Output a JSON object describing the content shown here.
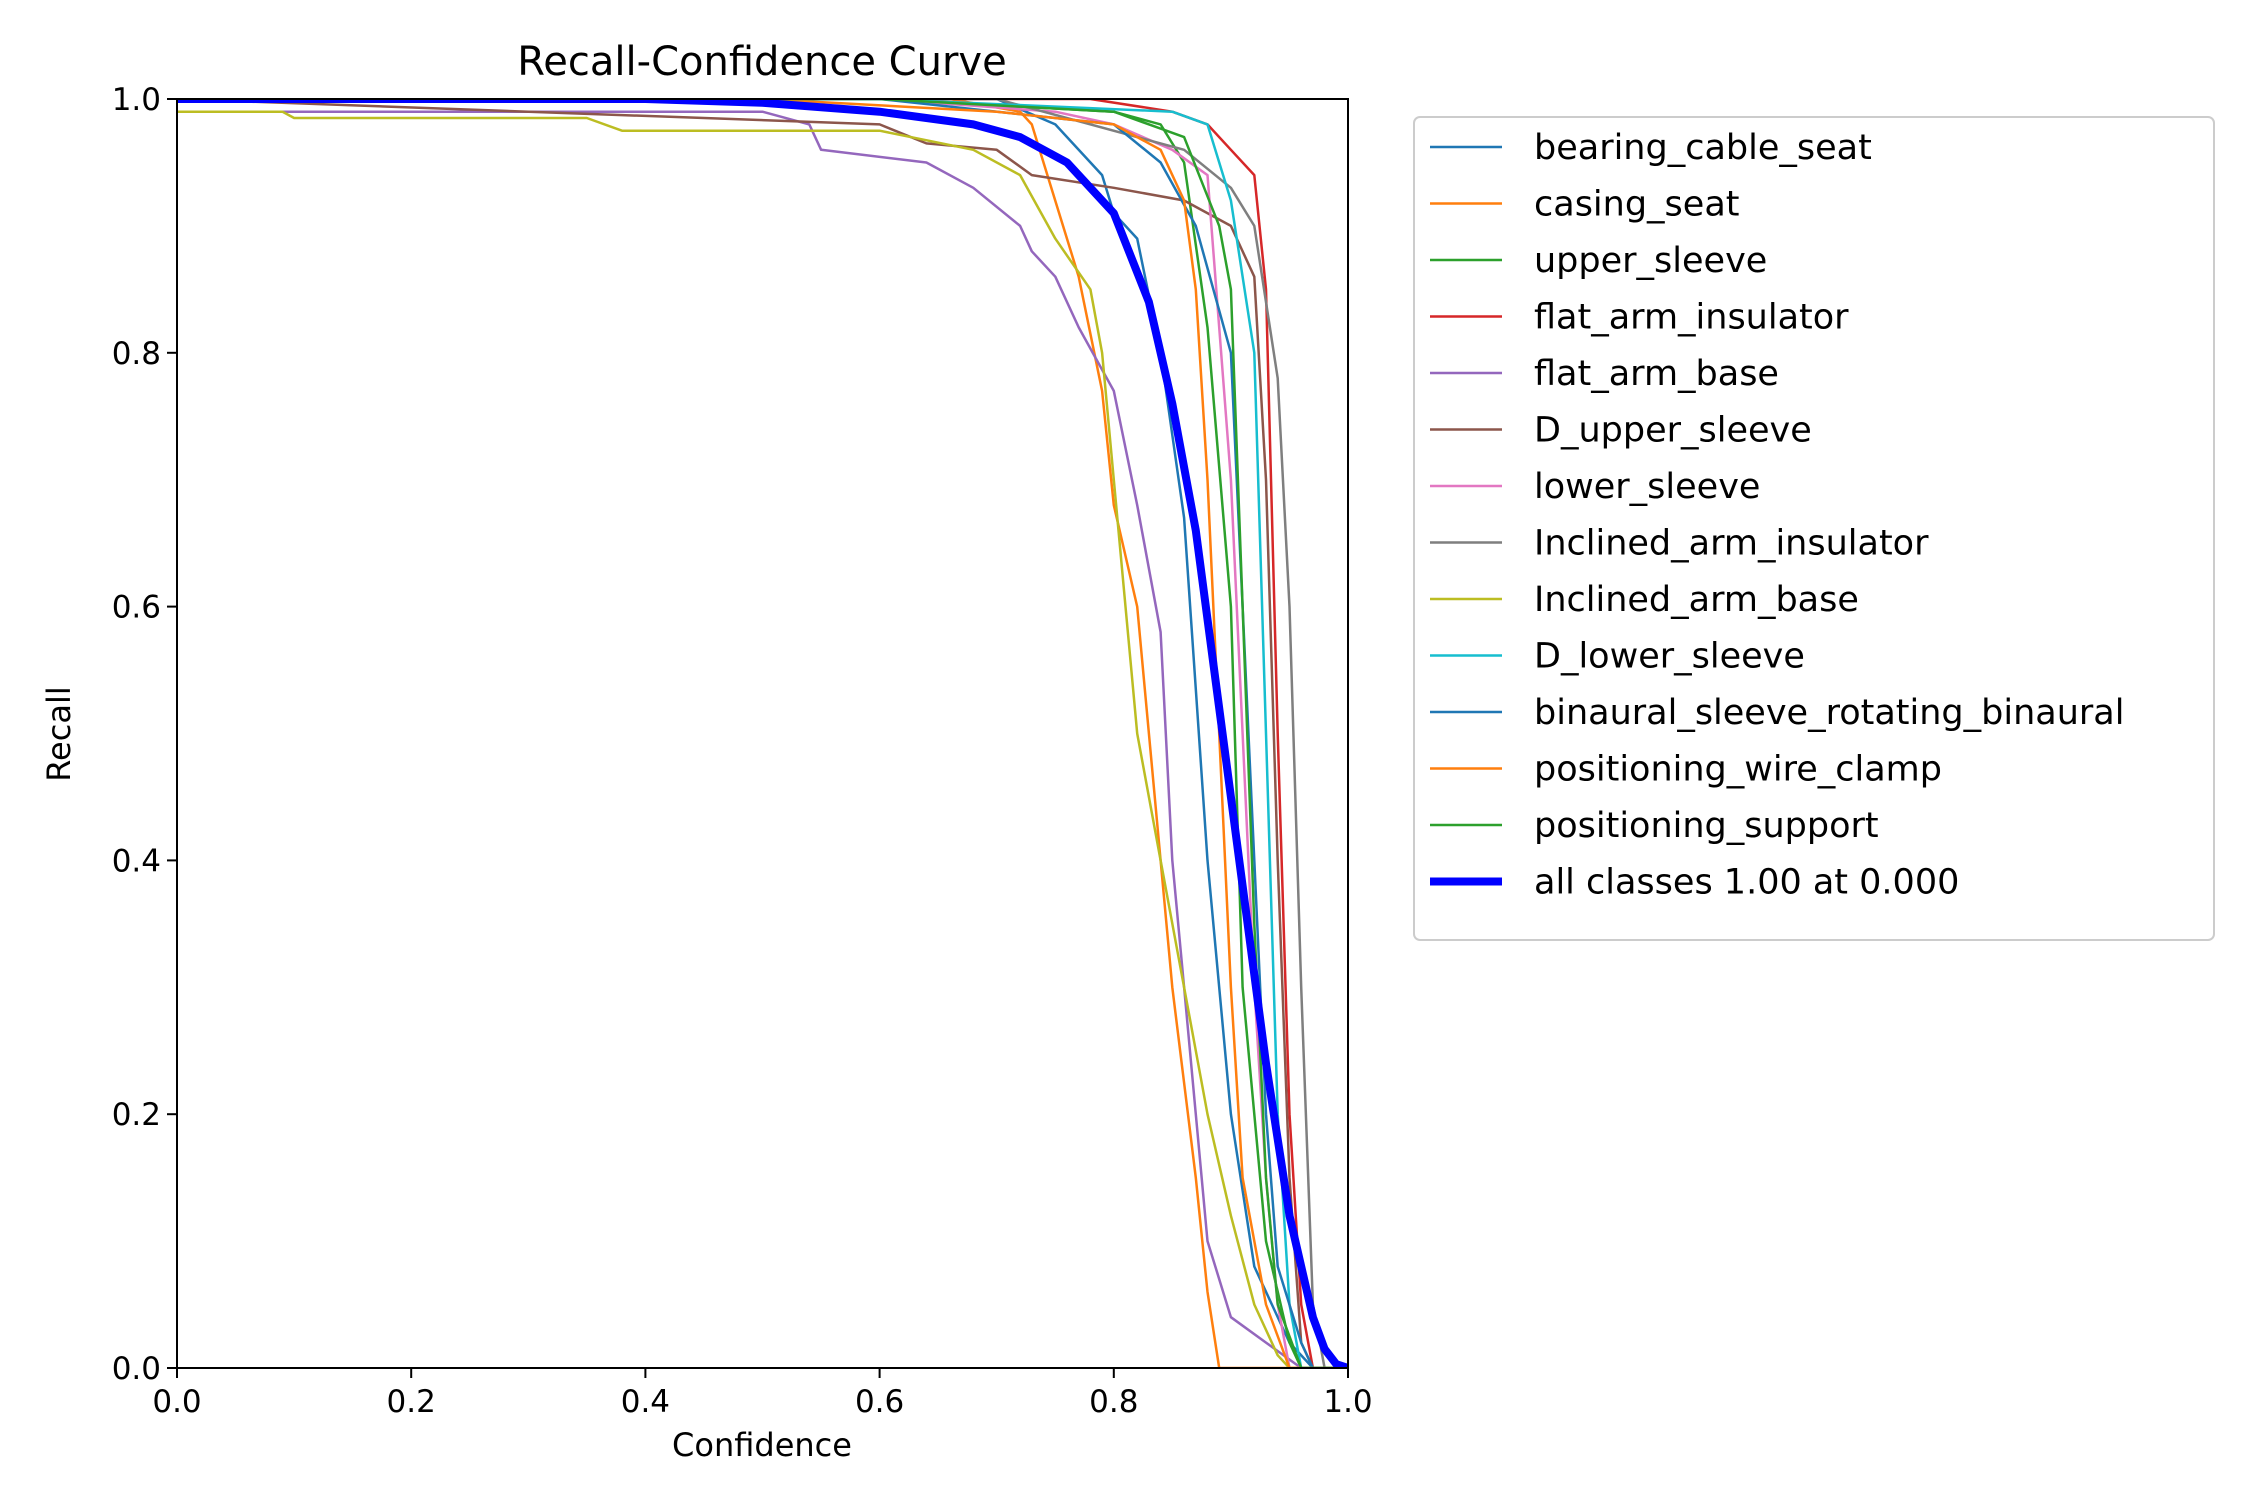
{
  "chart_data": {
    "type": "line",
    "title": "Recall-Confidence Curve",
    "xlabel": "Confidence",
    "ylabel": "Recall",
    "xlim": [
      0.0,
      1.0
    ],
    "ylim": [
      0.0,
      1.0
    ],
    "xticks": [
      "0.0",
      "0.2",
      "0.4",
      "0.6",
      "0.8",
      "1.0"
    ],
    "yticks": [
      "0.0",
      "0.2",
      "0.4",
      "0.6",
      "0.8",
      "1.0"
    ],
    "legend_position": "outside-right-top",
    "grid": false,
    "series": [
      {
        "name": "bearing_cable_seat",
        "color": "#1f77b4",
        "width": 2.5,
        "points": [
          [
            0,
            1.0
          ],
          [
            0.7,
            1.0
          ],
          [
            0.75,
            0.98
          ],
          [
            0.79,
            0.94
          ],
          [
            0.8,
            0.91
          ],
          [
            0.82,
            0.89
          ],
          [
            0.84,
            0.8
          ],
          [
            0.86,
            0.67
          ],
          [
            0.88,
            0.4
          ],
          [
            0.9,
            0.2
          ],
          [
            0.92,
            0.08
          ],
          [
            0.95,
            0.02
          ],
          [
            0.97,
            0.0
          ],
          [
            1.0,
            0.0
          ]
        ]
      },
      {
        "name": "casing_seat",
        "color": "#ff7f0e",
        "width": 2.5,
        "points": [
          [
            0,
            1.0
          ],
          [
            0.5,
            1.0
          ],
          [
            0.66,
            1.0
          ],
          [
            0.72,
            0.99
          ],
          [
            0.73,
            0.98
          ],
          [
            0.74,
            0.95
          ],
          [
            0.77,
            0.86
          ],
          [
            0.79,
            0.77
          ],
          [
            0.8,
            0.68
          ],
          [
            0.82,
            0.6
          ],
          [
            0.84,
            0.4
          ],
          [
            0.85,
            0.3
          ],
          [
            0.87,
            0.15
          ],
          [
            0.88,
            0.06
          ],
          [
            0.89,
            0.0
          ],
          [
            1.0,
            0.0
          ]
        ]
      },
      {
        "name": "upper_sleeve",
        "color": "#2ca02c",
        "width": 2.5,
        "points": [
          [
            0,
            1.0
          ],
          [
            0.6,
            1.0
          ],
          [
            0.8,
            0.99
          ],
          [
            0.84,
            0.98
          ],
          [
            0.86,
            0.95
          ],
          [
            0.88,
            0.82
          ],
          [
            0.9,
            0.6
          ],
          [
            0.91,
            0.3
          ],
          [
            0.93,
            0.1
          ],
          [
            0.95,
            0.02
          ],
          [
            0.96,
            0.0
          ],
          [
            1.0,
            0.0
          ]
        ]
      },
      {
        "name": "flat_arm_insulator",
        "color": "#d62728",
        "width": 2.5,
        "points": [
          [
            0,
            1.0
          ],
          [
            0.78,
            1.0
          ],
          [
            0.85,
            0.99
          ],
          [
            0.88,
            0.98
          ],
          [
            0.9,
            0.96
          ],
          [
            0.92,
            0.94
          ],
          [
            0.93,
            0.85
          ],
          [
            0.94,
            0.5
          ],
          [
            0.95,
            0.2
          ],
          [
            0.96,
            0.05
          ],
          [
            0.97,
            0.0
          ],
          [
            1.0,
            0.0
          ]
        ]
      },
      {
        "name": "flat_arm_base",
        "color": "#9467bd",
        "width": 2.5,
        "points": [
          [
            0,
            0.99
          ],
          [
            0.5,
            0.99
          ],
          [
            0.54,
            0.98
          ],
          [
            0.55,
            0.96
          ],
          [
            0.64,
            0.95
          ],
          [
            0.68,
            0.93
          ],
          [
            0.72,
            0.9
          ],
          [
            0.73,
            0.88
          ],
          [
            0.75,
            0.86
          ],
          [
            0.77,
            0.82
          ],
          [
            0.8,
            0.77
          ],
          [
            0.82,
            0.68
          ],
          [
            0.84,
            0.58
          ],
          [
            0.85,
            0.4
          ],
          [
            0.86,
            0.3
          ],
          [
            0.87,
            0.2
          ],
          [
            0.88,
            0.1
          ],
          [
            0.9,
            0.04
          ],
          [
            0.93,
            0.02
          ],
          [
            0.96,
            0.0
          ],
          [
            1.0,
            0.0
          ]
        ]
      },
      {
        "name": "D_upper_sleeve",
        "color": "#8c564b",
        "width": 2.5,
        "points": [
          [
            0,
            1.0
          ],
          [
            0.6,
            0.98
          ],
          [
            0.64,
            0.965
          ],
          [
            0.7,
            0.96
          ],
          [
            0.73,
            0.94
          ],
          [
            0.8,
            0.93
          ],
          [
            0.86,
            0.92
          ],
          [
            0.9,
            0.9
          ],
          [
            0.92,
            0.86
          ],
          [
            0.93,
            0.7
          ],
          [
            0.94,
            0.4
          ],
          [
            0.95,
            0.15
          ],
          [
            0.96,
            0.02
          ],
          [
            0.97,
            0.0
          ],
          [
            1.0,
            0.0
          ]
        ]
      },
      {
        "name": "lower_sleeve",
        "color": "#e377c2",
        "width": 2.5,
        "points": [
          [
            0,
            1.0
          ],
          [
            0.6,
            1.0
          ],
          [
            0.75,
            0.99
          ],
          [
            0.8,
            0.98
          ],
          [
            0.85,
            0.96
          ],
          [
            0.88,
            0.94
          ],
          [
            0.9,
            0.7
          ],
          [
            0.91,
            0.5
          ],
          [
            0.92,
            0.3
          ],
          [
            0.93,
            0.15
          ],
          [
            0.94,
            0.05
          ],
          [
            0.95,
            0.0
          ],
          [
            1.0,
            0.0
          ]
        ]
      },
      {
        "name": "Inclined_arm_insulator",
        "color": "#7f7f7f",
        "width": 2.5,
        "points": [
          [
            0,
            1.0
          ],
          [
            0.7,
            1.0
          ],
          [
            0.86,
            0.96
          ],
          [
            0.9,
            0.93
          ],
          [
            0.92,
            0.9
          ],
          [
            0.94,
            0.78
          ],
          [
            0.95,
            0.6
          ],
          [
            0.96,
            0.3
          ],
          [
            0.97,
            0.05
          ],
          [
            0.98,
            0.0
          ],
          [
            1.0,
            0.0
          ]
        ]
      },
      {
        "name": "Inclined_arm_base",
        "color": "#bcbd22",
        "width": 2.5,
        "points": [
          [
            0,
            0.99
          ],
          [
            0.09,
            0.99
          ],
          [
            0.1,
            0.985
          ],
          [
            0.35,
            0.985
          ],
          [
            0.38,
            0.975
          ],
          [
            0.6,
            0.975
          ],
          [
            0.68,
            0.96
          ],
          [
            0.72,
            0.94
          ],
          [
            0.75,
            0.89
          ],
          [
            0.78,
            0.85
          ],
          [
            0.79,
            0.8
          ],
          [
            0.8,
            0.7
          ],
          [
            0.82,
            0.5
          ],
          [
            0.84,
            0.4
          ],
          [
            0.86,
            0.3
          ],
          [
            0.88,
            0.2
          ],
          [
            0.9,
            0.12
          ],
          [
            0.92,
            0.05
          ],
          [
            0.94,
            0.01
          ],
          [
            0.95,
            0.0
          ],
          [
            1.0,
            0.0
          ]
        ]
      },
      {
        "name": "D_lower_sleeve",
        "color": "#17becf",
        "width": 2.5,
        "points": [
          [
            0,
            1.0
          ],
          [
            0.6,
            1.0
          ],
          [
            0.85,
            0.99
          ],
          [
            0.88,
            0.98
          ],
          [
            0.9,
            0.92
          ],
          [
            0.92,
            0.8
          ],
          [
            0.93,
            0.5
          ],
          [
            0.94,
            0.2
          ],
          [
            0.95,
            0.05
          ],
          [
            0.96,
            0.0
          ],
          [
            1.0,
            0.0
          ]
        ]
      },
      {
        "name": "binaural_sleeve_rotating_binaural",
        "color": "#1f77b4",
        "width": 2.5,
        "points": [
          [
            0,
            1.0
          ],
          [
            0.6,
            1.0
          ],
          [
            0.8,
            0.98
          ],
          [
            0.84,
            0.95
          ],
          [
            0.87,
            0.9
          ],
          [
            0.9,
            0.8
          ],
          [
            0.91,
            0.6
          ],
          [
            0.92,
            0.4
          ],
          [
            0.93,
            0.2
          ],
          [
            0.94,
            0.08
          ],
          [
            0.96,
            0.02
          ],
          [
            0.97,
            0.0
          ],
          [
            1.0,
            0.0
          ]
        ]
      },
      {
        "name": "positioning_wire_clamp",
        "color": "#ff7f0e",
        "width": 2.5,
        "points": [
          [
            0,
            1.0
          ],
          [
            0.5,
            1.0
          ],
          [
            0.7,
            0.99
          ],
          [
            0.8,
            0.98
          ],
          [
            0.84,
            0.96
          ],
          [
            0.86,
            0.92
          ],
          [
            0.87,
            0.85
          ],
          [
            0.88,
            0.7
          ],
          [
            0.89,
            0.5
          ],
          [
            0.9,
            0.3
          ],
          [
            0.91,
            0.15
          ],
          [
            0.93,
            0.05
          ],
          [
            0.95,
            0.0
          ],
          [
            1.0,
            0.0
          ]
        ]
      },
      {
        "name": "positioning_support",
        "color": "#2ca02c",
        "width": 2.5,
        "points": [
          [
            0,
            1.0
          ],
          [
            0.6,
            1.0
          ],
          [
            0.8,
            0.99
          ],
          [
            0.86,
            0.97
          ],
          [
            0.89,
            0.9
          ],
          [
            0.9,
            0.85
          ],
          [
            0.91,
            0.6
          ],
          [
            0.92,
            0.35
          ],
          [
            0.93,
            0.15
          ],
          [
            0.94,
            0.05
          ],
          [
            0.96,
            0.0
          ],
          [
            1.0,
            0.0
          ]
        ]
      },
      {
        "name": "all classes 1.00 at 0.000",
        "color": "#0000ff",
        "width": 8,
        "points": [
          [
            0,
            1.0
          ],
          [
            0.4,
            1.0
          ],
          [
            0.5,
            0.997
          ],
          [
            0.6,
            0.99
          ],
          [
            0.68,
            0.98
          ],
          [
            0.72,
            0.97
          ],
          [
            0.76,
            0.95
          ],
          [
            0.8,
            0.91
          ],
          [
            0.83,
            0.84
          ],
          [
            0.85,
            0.76
          ],
          [
            0.87,
            0.66
          ],
          [
            0.89,
            0.52
          ],
          [
            0.91,
            0.38
          ],
          [
            0.93,
            0.24
          ],
          [
            0.95,
            0.12
          ],
          [
            0.97,
            0.04
          ],
          [
            0.98,
            0.015
          ],
          [
            0.99,
            0.003
          ],
          [
            1.0,
            0.0
          ]
        ]
      }
    ]
  }
}
